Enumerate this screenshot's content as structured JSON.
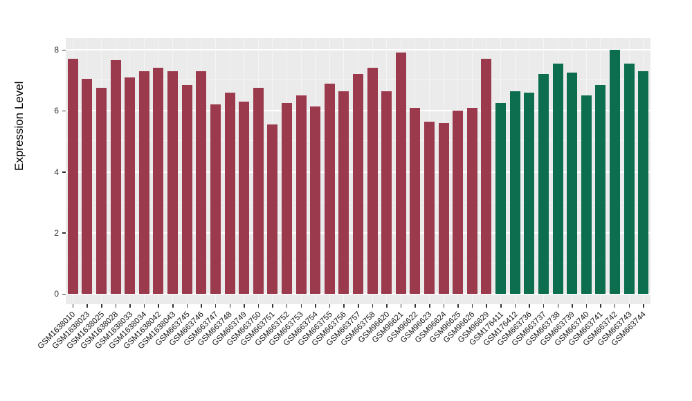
{
  "chart_data": {
    "type": "bar",
    "title": "",
    "xlabel": "",
    "ylabel": "Expression Level",
    "ylim": [
      0,
      8.4
    ],
    "yticks": [
      0,
      2,
      4,
      6,
      8
    ],
    "legend": "none",
    "grid": "on",
    "panel_bg": "#ebebeb",
    "grid_color": "#ffffff",
    "group_sizes": [
      30,
      11
    ],
    "group_colors": [
      "#9b3a4d",
      "#0c6e4e"
    ],
    "categories": [
      "GSM1638010",
      "GSM1638023",
      "GSM1638025",
      "GSM1638028",
      "GSM1638033",
      "GSM1638034",
      "GSM1638042",
      "GSM1638043",
      "GSM663745",
      "GSM663746",
      "GSM663747",
      "GSM663748",
      "GSM663749",
      "GSM663750",
      "GSM663751",
      "GSM663752",
      "GSM663753",
      "GSM663754",
      "GSM663755",
      "GSM663756",
      "GSM663757",
      "GSM663758",
      "GSM96620",
      "GSM96621",
      "GSM96622",
      "GSM96623",
      "GSM96624",
      "GSM96625",
      "GSM96626",
      "GSM96629",
      "GSM176411",
      "GSM176412",
      "GSM663736",
      "GSM663737",
      "GSM663738",
      "GSM663739",
      "GSM663740",
      "GSM663741",
      "GSM663742",
      "GSM663743",
      "GSM663744"
    ],
    "values": [
      7.7,
      7.05,
      6.75,
      7.65,
      7.1,
      7.3,
      7.4,
      7.3,
      6.85,
      7.3,
      6.2,
      6.6,
      6.3,
      6.75,
      5.55,
      6.25,
      6.5,
      6.15,
      6.9,
      6.65,
      7.2,
      7.4,
      6.65,
      7.9,
      6.1,
      5.65,
      5.6,
      6.0,
      6.1,
      7.7,
      6.25,
      6.65,
      6.6,
      7.2,
      7.55,
      7.25,
      6.5,
      6.85,
      8.0,
      7.55,
      7.3
    ]
  }
}
